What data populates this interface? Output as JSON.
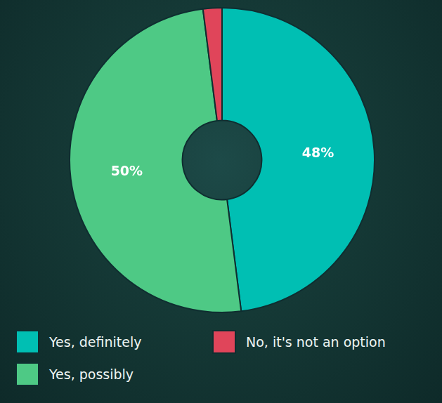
{
  "chart_data": {
    "type": "doughnut",
    "categories": [
      "Yes, definitely",
      "Yes, possibly",
      "No, it's not an option"
    ],
    "values": [
      48,
      50,
      2
    ],
    "value_labels": [
      "48%",
      "50%",
      null
    ],
    "colors": [
      "#00bfb3",
      "#4ec985",
      "#e0455a"
    ],
    "data_labels": true,
    "legend": "bottom"
  }
}
